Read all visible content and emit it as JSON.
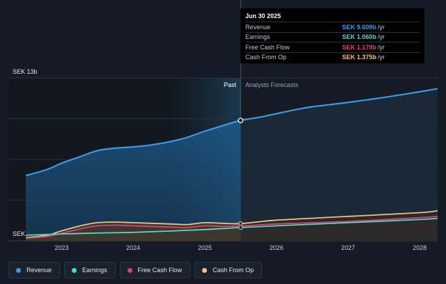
{
  "chart_data": {
    "type": "area",
    "currency": "SEK",
    "y_top_label": "SEK 13b",
    "y_bottom_label": "SEK",
    "ylim": [
      0,
      13
    ],
    "x_ticks": [
      "2023",
      "2024",
      "2025",
      "2026",
      "2027",
      "2028"
    ],
    "past_label": "Past",
    "forecast_label": "Analysts Forecasts",
    "divider_date": 2025.5,
    "highlight_start": 2024.5,
    "series": [
      {
        "name": "Revenue",
        "color": "#3b9ae8",
        "x": [
          2022.5,
          2022.8,
          2023.0,
          2023.25,
          2023.5,
          2023.75,
          2024.0,
          2024.25,
          2024.5,
          2024.75,
          2025.0,
          2025.25,
          2025.5,
          2025.75,
          2026.0,
          2026.25,
          2026.5,
          2027.0,
          2027.5,
          2028.0,
          2028.25
        ],
        "y": [
          5.2,
          5.7,
          6.2,
          6.7,
          7.2,
          7.4,
          7.5,
          7.65,
          7.9,
          8.25,
          8.75,
          9.2,
          9.609,
          9.85,
          10.15,
          10.45,
          10.7,
          11.05,
          11.45,
          11.9,
          12.15
        ]
      },
      {
        "name": "Earnings",
        "color": "#55d6c6",
        "x": [
          2022.5,
          2023.0,
          2023.5,
          2024.0,
          2024.5,
          2025.0,
          2025.5,
          2026.0,
          2027.0,
          2028.0,
          2028.25
        ],
        "y": [
          0.45,
          0.55,
          0.62,
          0.68,
          0.78,
          0.9,
          1.06,
          1.2,
          1.45,
          1.7,
          1.8
        ]
      },
      {
        "name": "Free Cash Flow",
        "color": "#d6457a",
        "x": [
          2022.5,
          2022.8,
          2023.0,
          2023.3,
          2023.5,
          2023.75,
          2024.0,
          2024.5,
          2024.75,
          2025.0,
          2025.25,
          2025.5,
          2026.0,
          2027.0,
          2028.0,
          2028.25
        ],
        "y": [
          0.2,
          0.35,
          0.6,
          1.0,
          1.2,
          1.25,
          1.2,
          1.1,
          1.05,
          1.2,
          1.15,
          1.178,
          1.35,
          1.55,
          1.85,
          1.95
        ]
      },
      {
        "name": "Cash From Op",
        "color": "#f2c27a",
        "x": [
          2022.5,
          2022.8,
          2023.0,
          2023.3,
          2023.5,
          2023.75,
          2024.0,
          2024.5,
          2024.75,
          2025.0,
          2025.25,
          2025.5,
          2026.0,
          2027.0,
          2028.0,
          2028.25
        ],
        "y": [
          0.25,
          0.45,
          0.8,
          1.25,
          1.45,
          1.5,
          1.45,
          1.35,
          1.3,
          1.45,
          1.4,
          1.375,
          1.65,
          1.95,
          2.25,
          2.4
        ]
      }
    ],
    "grid": true
  },
  "tooltip": {
    "date": "Jun 30 2025",
    "rows": [
      {
        "label": "Revenue",
        "value": "SEK 9.609b",
        "unit": "/yr",
        "color": "#3b9ae8"
      },
      {
        "label": "Earnings",
        "value": "SEK 1.060b",
        "unit": "/yr",
        "color": "#55d6c6"
      },
      {
        "label": "Free Cash Flow",
        "value": "SEK 1.178b",
        "unit": "/yr",
        "color": "#d6457a"
      },
      {
        "label": "Cash From Op",
        "value": "SEK 1.375b",
        "unit": "/yr",
        "color": "#f2c27a"
      }
    ]
  },
  "legend": [
    {
      "label": "Revenue",
      "color": "#3b9ae8"
    },
    {
      "label": "Earnings",
      "color": "#55d6c6"
    },
    {
      "label": "Free Cash Flow",
      "color": "#d6457a"
    },
    {
      "label": "Cash From Op",
      "color": "#f2c27a"
    }
  ]
}
